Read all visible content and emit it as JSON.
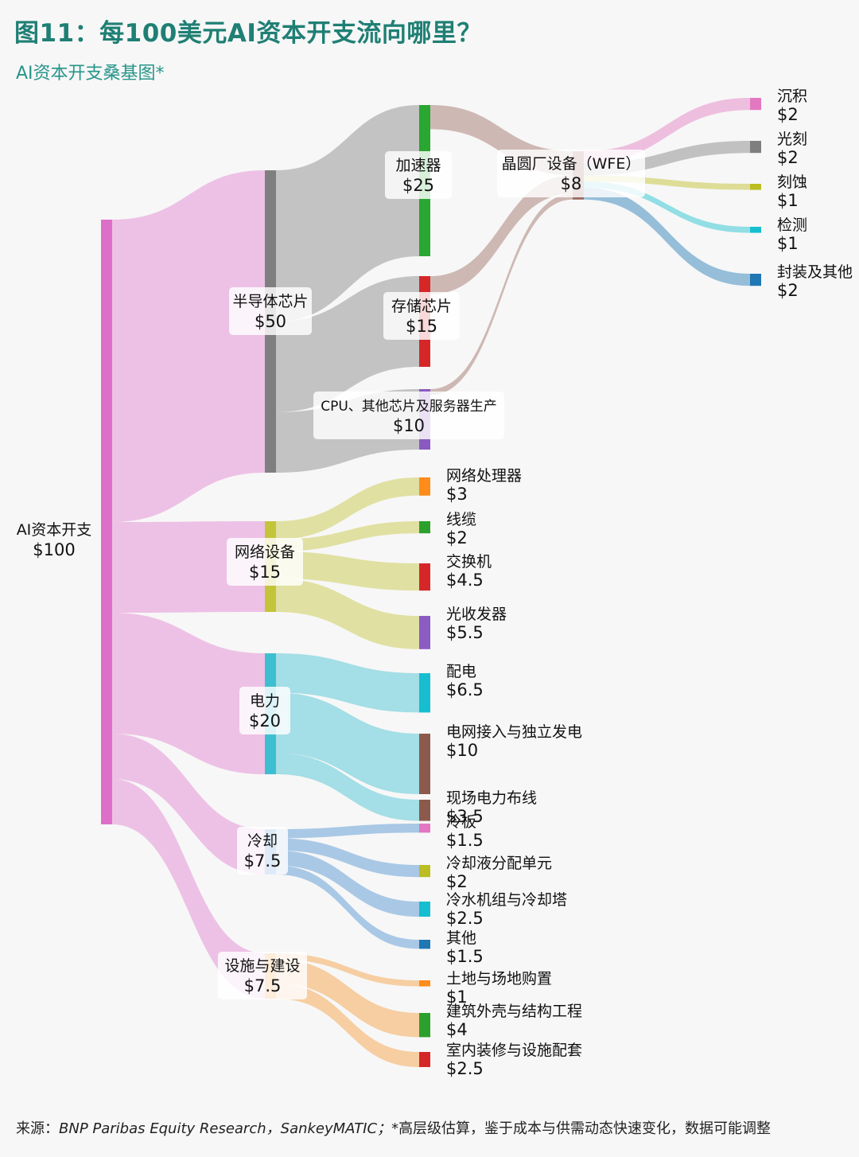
{
  "title": "图11：每100美元AI资本开支流向哪里？",
  "subtitle": "AI资本开支桑基图*",
  "footnote": {
    "prefix": "来源：",
    "source": "BNP Paribas Equity Research，SankeyMATIC；",
    "note": "*高层级估算，鉴于成本与供需动态快速变化，数据可能调整"
  },
  "chart_data": {
    "type": "sankey",
    "unit": "$",
    "nodes": [
      {
        "id": "capex",
        "name": "AI资本开支",
        "value": "$100",
        "color": "#dd6fc8"
      },
      {
        "id": "semi",
        "name": "半导体芯片",
        "value": "$50",
        "color": "#7f7f7f"
      },
      {
        "id": "net",
        "name": "网络设备",
        "value": "$15",
        "color": "#c4c43a"
      },
      {
        "id": "power",
        "name": "电力",
        "value": "$20",
        "color": "#3ebfd1"
      },
      {
        "id": "cool",
        "name": "冷却",
        "value": "$7.5",
        "color": "#4a8fd0"
      },
      {
        "id": "fac",
        "name": "设施与建设",
        "value": "$7.5",
        "color": "#f39c3a"
      },
      {
        "id": "accel",
        "name": "加速器",
        "value": "$25",
        "color": "#2aa632"
      },
      {
        "id": "mem",
        "name": "存储芯片",
        "value": "$15",
        "color": "#d62728"
      },
      {
        "id": "cpu",
        "name": "CPU、其他芯片及服务器生产",
        "value": "$10",
        "color": "#8a5ac2"
      },
      {
        "id": "wfe",
        "name": "晶圆厂设备（WFE）",
        "value": "$8",
        "color": "#9b6a60"
      },
      {
        "id": "dep",
        "name": "沉积",
        "value": "$2",
        "color": "#e377c2"
      },
      {
        "id": "litho",
        "name": "光刻",
        "value": "$2",
        "color": "#7f7f7f"
      },
      {
        "id": "etch",
        "name": "刻蚀",
        "value": "$1",
        "color": "#bcbd22"
      },
      {
        "id": "insp",
        "name": "检测",
        "value": "$1",
        "color": "#17becf"
      },
      {
        "id": "pkg",
        "name": "封装及其他",
        "value": "$2",
        "color": "#1f77b4"
      },
      {
        "id": "nproc",
        "name": "网络处理器",
        "value": "$3",
        "color": "#ff8c1a"
      },
      {
        "id": "cable",
        "name": "线缆",
        "value": "$2",
        "color": "#2ca02c"
      },
      {
        "id": "switch",
        "name": "交换机",
        "value": "$4.5",
        "color": "#d62728"
      },
      {
        "id": "optic",
        "name": "光收发器",
        "value": "$5.5",
        "color": "#8c5bc4"
      },
      {
        "id": "dist",
        "name": "配电",
        "value": "$6.5",
        "color": "#17becf"
      },
      {
        "id": "grid",
        "name": "电网接入与独立发电",
        "value": "$10",
        "color": "#8c5a4c"
      },
      {
        "id": "wiring",
        "name": "现场电力布线",
        "value": "$3.5",
        "color": "#8c5a4c"
      },
      {
        "id": "cold",
        "name": "冷板",
        "value": "$1.5",
        "color": "#e377c2"
      },
      {
        "id": "cdu",
        "name": "冷却液分配单元",
        "value": "$2",
        "color": "#bcbd22"
      },
      {
        "id": "chiller",
        "name": "冷水机组与冷却塔",
        "value": "$2.5",
        "color": "#17becf"
      },
      {
        "id": "other",
        "name": "其他",
        "value": "$1.5",
        "color": "#1f77b4"
      },
      {
        "id": "land",
        "name": "土地与场地购置",
        "value": "$1",
        "color": "#ff8c1a"
      },
      {
        "id": "shell",
        "name": "建筑外壳与结构工程",
        "value": "$4",
        "color": "#2ca02c"
      },
      {
        "id": "fitout",
        "name": "室内装修与设施配套",
        "value": "$2.5",
        "color": "#d62728"
      }
    ],
    "links": [
      {
        "source": "capex",
        "target": "semi",
        "value": 50
      },
      {
        "source": "capex",
        "target": "net",
        "value": 15
      },
      {
        "source": "capex",
        "target": "power",
        "value": 20
      },
      {
        "source": "capex",
        "target": "cool",
        "value": 7.5
      },
      {
        "source": "capex",
        "target": "fac",
        "value": 7.5
      },
      {
        "source": "semi",
        "target": "accel",
        "value": 25
      },
      {
        "source": "semi",
        "target": "mem",
        "value": 15
      },
      {
        "source": "semi",
        "target": "cpu",
        "value": 10
      },
      {
        "source": "accel",
        "target": "wfe",
        "value": 4
      },
      {
        "source": "mem",
        "target": "wfe",
        "value": 3
      },
      {
        "source": "cpu",
        "target": "wfe",
        "value": 1
      },
      {
        "source": "wfe",
        "target": "dep",
        "value": 2
      },
      {
        "source": "wfe",
        "target": "litho",
        "value": 2
      },
      {
        "source": "wfe",
        "target": "etch",
        "value": 1
      },
      {
        "source": "wfe",
        "target": "insp",
        "value": 1
      },
      {
        "source": "wfe",
        "target": "pkg",
        "value": 2
      },
      {
        "source": "net",
        "target": "nproc",
        "value": 3
      },
      {
        "source": "net",
        "target": "cable",
        "value": 2
      },
      {
        "source": "net",
        "target": "switch",
        "value": 4.5
      },
      {
        "source": "net",
        "target": "optic",
        "value": 5.5
      },
      {
        "source": "power",
        "target": "dist",
        "value": 6.5
      },
      {
        "source": "power",
        "target": "grid",
        "value": 10
      },
      {
        "source": "power",
        "target": "wiring",
        "value": 3.5
      },
      {
        "source": "cool",
        "target": "cold",
        "value": 1.5
      },
      {
        "source": "cool",
        "target": "cdu",
        "value": 2
      },
      {
        "source": "cool",
        "target": "chiller",
        "value": 2.5
      },
      {
        "source": "cool",
        "target": "other",
        "value": 1.5
      },
      {
        "source": "fac",
        "target": "land",
        "value": 1
      },
      {
        "source": "fac",
        "target": "shell",
        "value": 4
      },
      {
        "source": "fac",
        "target": "fitout",
        "value": 2.5
      }
    ]
  }
}
